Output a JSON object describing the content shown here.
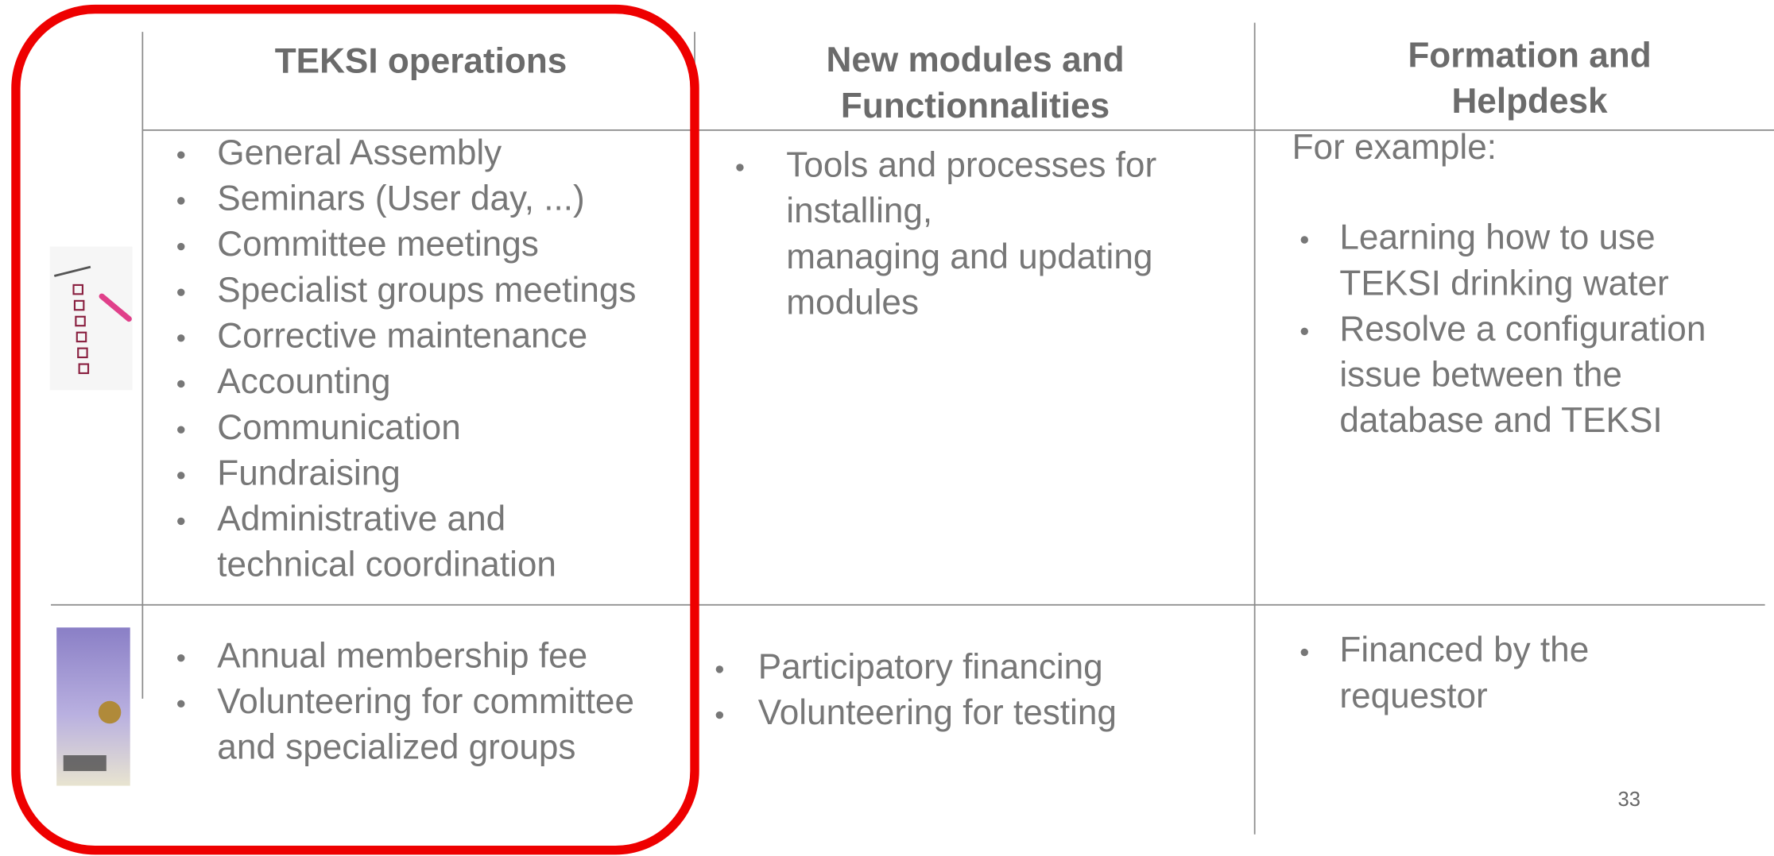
{
  "table": {
    "headers": [
      [
        "TEKSI operations"
      ],
      [
        "New modules and",
        "Functionnalities"
      ],
      [
        "Formation and",
        "Helpdesk"
      ]
    ],
    "rows": [
      {
        "cells": [
          {
            "items": [
              [
                "General Assembly"
              ],
              [
                "Seminars (User day, ...)"
              ],
              [
                "Committee meetings"
              ],
              [
                "Specialist groups meetings"
              ],
              [
                "Corrective maintenance"
              ],
              [
                "Accounting"
              ],
              [
                "Communication"
              ],
              [
                "Fundraising"
              ],
              [
                "Administrative and",
                "technical coordination"
              ]
            ]
          },
          {
            "items": [
              [
                "Tools and processes for",
                "installing,",
                "managing and updating",
                "modules"
              ]
            ]
          },
          {
            "intro": "For example:",
            "items": [
              [
                "Learning how to use",
                "TEKSI drinking water"
              ],
              [
                "Resolve a configuration",
                "issue between the",
                "database and TEKSI"
              ]
            ]
          }
        ]
      },
      {
        "cells": [
          {
            "items": [
              [
                "Annual membership fee"
              ],
              [
                "Volunteering for committee",
                "and specialized groups"
              ]
            ]
          },
          {
            "items": [
              [
                "Participatory financing"
              ],
              [
                "Volunteering for testing"
              ]
            ]
          },
          {
            "items": [
              [
                "Financed by the",
                "requestor"
              ]
            ]
          }
        ]
      }
    ]
  },
  "page_number": "33"
}
